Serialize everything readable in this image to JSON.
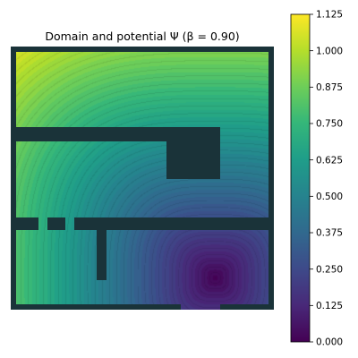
{
  "chart_data": {
    "type": "heatmap",
    "title": "Domain and potential Ψ (β = 0.90)",
    "colorbar": {
      "range": [
        0.0,
        1.125
      ],
      "ticks": [
        "0.000",
        "0.125",
        "0.250",
        "0.375",
        "0.500",
        "0.625",
        "0.750",
        "0.875",
        "1.000",
        "1.125"
      ],
      "colormap": "viridis"
    },
    "field": {
      "min": 0.0,
      "max": 1.125,
      "max_location": "top-left corner",
      "min_location": "lower-right room (source)",
      "contour_levels": 40
    },
    "wall_color": "#1a3339"
  }
}
